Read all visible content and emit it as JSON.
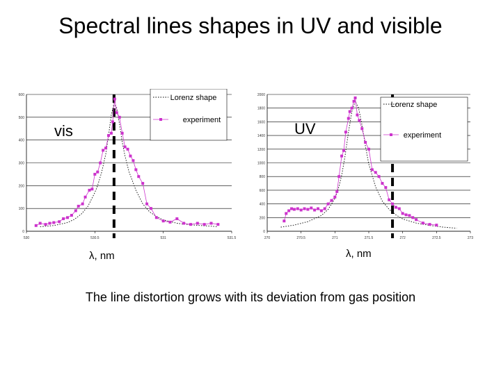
{
  "slide": {
    "title": "Spectral lines shapes in UV and visible",
    "caption": "The line distortion grows with its deviation from gas position"
  },
  "colors": {
    "experiment": "#cc33cc",
    "lorenz": "#000000",
    "gas_marker": "#000000",
    "grid": "#000000"
  },
  "chart_data": [
    {
      "type": "line",
      "panel_label": "vis",
      "xlabel": "λ, nm",
      "ylabel": "",
      "xlim": [
        530,
        531.5
      ],
      "ylim": [
        0,
        600
      ],
      "x_ticks": [
        "530",
        "530.5",
        "531",
        "531.5"
      ],
      "y_ticks": [
        "0",
        "100",
        "200",
        "300",
        "400",
        "500",
        "600"
      ],
      "grid": true,
      "legend_position": "top-right",
      "gas_line_x": 530.64,
      "series": [
        {
          "name": "Lorenz shape",
          "style": "dotted",
          "x": [
            530.1,
            530.2,
            530.3,
            530.35,
            530.4,
            530.45,
            530.5,
            530.52,
            530.55,
            530.58,
            530.6,
            530.62,
            530.64,
            530.66,
            530.68,
            530.7,
            530.72,
            530.75,
            530.8,
            530.85,
            530.9,
            530.95,
            531.0,
            531.1,
            531.2,
            531.4
          ],
          "y": [
            20,
            25,
            38,
            52,
            75,
            110,
            170,
            200,
            260,
            340,
            420,
            510,
            560,
            540,
            470,
            390,
            330,
            260,
            180,
            120,
            85,
            65,
            50,
            35,
            28,
            20
          ]
        },
        {
          "name": "experiment",
          "style": "markers",
          "x": [
            530.07,
            530.1,
            530.14,
            530.17,
            530.2,
            530.24,
            530.27,
            530.3,
            530.33,
            530.36,
            530.38,
            530.41,
            530.43,
            530.46,
            530.48,
            530.5,
            530.52,
            530.54,
            530.56,
            530.58,
            530.6,
            530.62,
            530.63,
            530.645,
            530.66,
            530.68,
            530.7,
            530.72,
            530.74,
            530.76,
            530.78,
            530.8,
            530.82,
            530.85,
            530.88,
            530.91,
            530.95,
            531.0,
            531.05,
            531.1,
            531.15,
            531.2,
            531.25,
            531.3,
            531.35,
            531.4
          ],
          "y": [
            25,
            35,
            30,
            35,
            38,
            42,
            55,
            60,
            70,
            90,
            110,
            120,
            150,
            180,
            185,
            250,
            260,
            300,
            355,
            365,
            420,
            430,
            480,
            580,
            520,
            500,
            430,
            370,
            360,
            330,
            310,
            270,
            240,
            210,
            120,
            100,
            60,
            45,
            40,
            55,
            35,
            30,
            35,
            30,
            35,
            30
          ]
        }
      ]
    },
    {
      "type": "line",
      "panel_label": "UV",
      "xlabel": "λ, nm",
      "ylabel": "",
      "xlim": [
        270,
        273
      ],
      "ylim": [
        0,
        2000
      ],
      "x_ticks": [
        "270",
        "270.5",
        "271",
        "271.5",
        "272",
        "272.5",
        "273"
      ],
      "y_ticks": [
        "0",
        "200",
        "400",
        "600",
        "800",
        "1000",
        "1200",
        "1400",
        "1600",
        "1800",
        "2000"
      ],
      "grid": true,
      "legend_position": "top-right",
      "gas_line_x": 271.85,
      "series": [
        {
          "name": "Lorenz shape",
          "style": "dotted",
          "x": [
            270.2,
            270.4,
            270.6,
            270.8,
            270.9,
            271.0,
            271.05,
            271.1,
            271.15,
            271.2,
            271.25,
            271.3,
            271.35,
            271.4,
            271.45,
            271.5,
            271.6,
            271.7,
            271.8,
            271.9,
            272.0,
            272.2,
            272.4,
            272.6,
            272.8
          ],
          "y": [
            60,
            90,
            140,
            230,
            320,
            480,
            620,
            820,
            1100,
            1450,
            1750,
            1900,
            1800,
            1550,
            1250,
            980,
            650,
            440,
            320,
            240,
            180,
            120,
            85,
            60,
            45
          ]
        },
        {
          "name": "experiment",
          "style": "markers",
          "x": [
            270.25,
            270.28,
            270.32,
            270.36,
            270.4,
            270.45,
            270.5,
            270.55,
            270.6,
            270.65,
            270.7,
            270.75,
            270.8,
            270.85,
            270.9,
            270.95,
            271.0,
            271.03,
            271.06,
            271.1,
            271.13,
            271.16,
            271.2,
            271.22,
            271.25,
            271.28,
            271.3,
            271.33,
            271.36,
            271.4,
            271.45,
            271.5,
            271.55,
            271.6,
            271.65,
            271.7,
            271.75,
            271.8,
            271.85,
            271.9,
            271.95,
            272.0,
            272.05,
            272.1,
            272.15,
            272.2,
            272.3,
            272.4,
            272.5
          ],
          "y": [
            150,
            260,
            300,
            330,
            320,
            330,
            310,
            330,
            320,
            340,
            310,
            330,
            300,
            330,
            400,
            450,
            500,
            580,
            800,
            1100,
            1180,
            1450,
            1650,
            1750,
            1800,
            1900,
            1950,
            1700,
            1620,
            1500,
            1300,
            1200,
            900,
            860,
            800,
            700,
            640,
            460,
            400,
            350,
            330,
            260,
            240,
            230,
            200,
            170,
            120,
            100,
            90
          ]
        }
      ]
    }
  ]
}
